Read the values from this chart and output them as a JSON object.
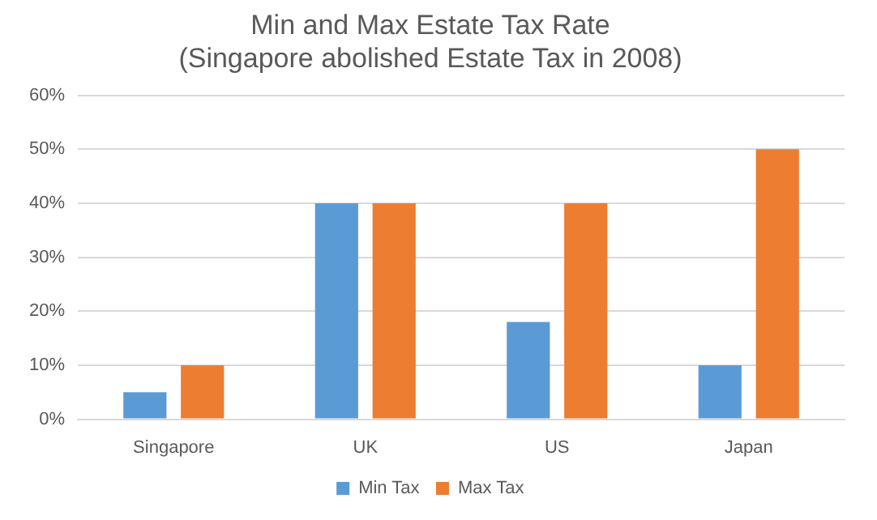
{
  "chart_data": {
    "type": "bar",
    "title": [
      "Min and Max Estate Tax Rate",
      "(Singapore abolished Estate Tax in 2008)"
    ],
    "categories": [
      "Singapore",
      "UK",
      "US",
      "Japan"
    ],
    "series": [
      {
        "name": "Min Tax",
        "color": "#5b9bd5",
        "values": [
          5,
          40,
          18,
          10
        ]
      },
      {
        "name": "Max Tax",
        "color": "#ed7d31",
        "values": [
          10,
          40,
          40,
          50
        ]
      }
    ],
    "ylim": [
      0,
      60
    ],
    "yticks": [
      {
        "value": 0,
        "label": "0%"
      },
      {
        "value": 10,
        "label": "10%"
      },
      {
        "value": 20,
        "label": "20%"
      },
      {
        "value": 30,
        "label": "30%"
      },
      {
        "value": 40,
        "label": "40%"
      },
      {
        "value": 50,
        "label": "50%"
      },
      {
        "value": 60,
        "label": "60%"
      }
    ],
    "grid": "y",
    "legend": "bottom"
  }
}
